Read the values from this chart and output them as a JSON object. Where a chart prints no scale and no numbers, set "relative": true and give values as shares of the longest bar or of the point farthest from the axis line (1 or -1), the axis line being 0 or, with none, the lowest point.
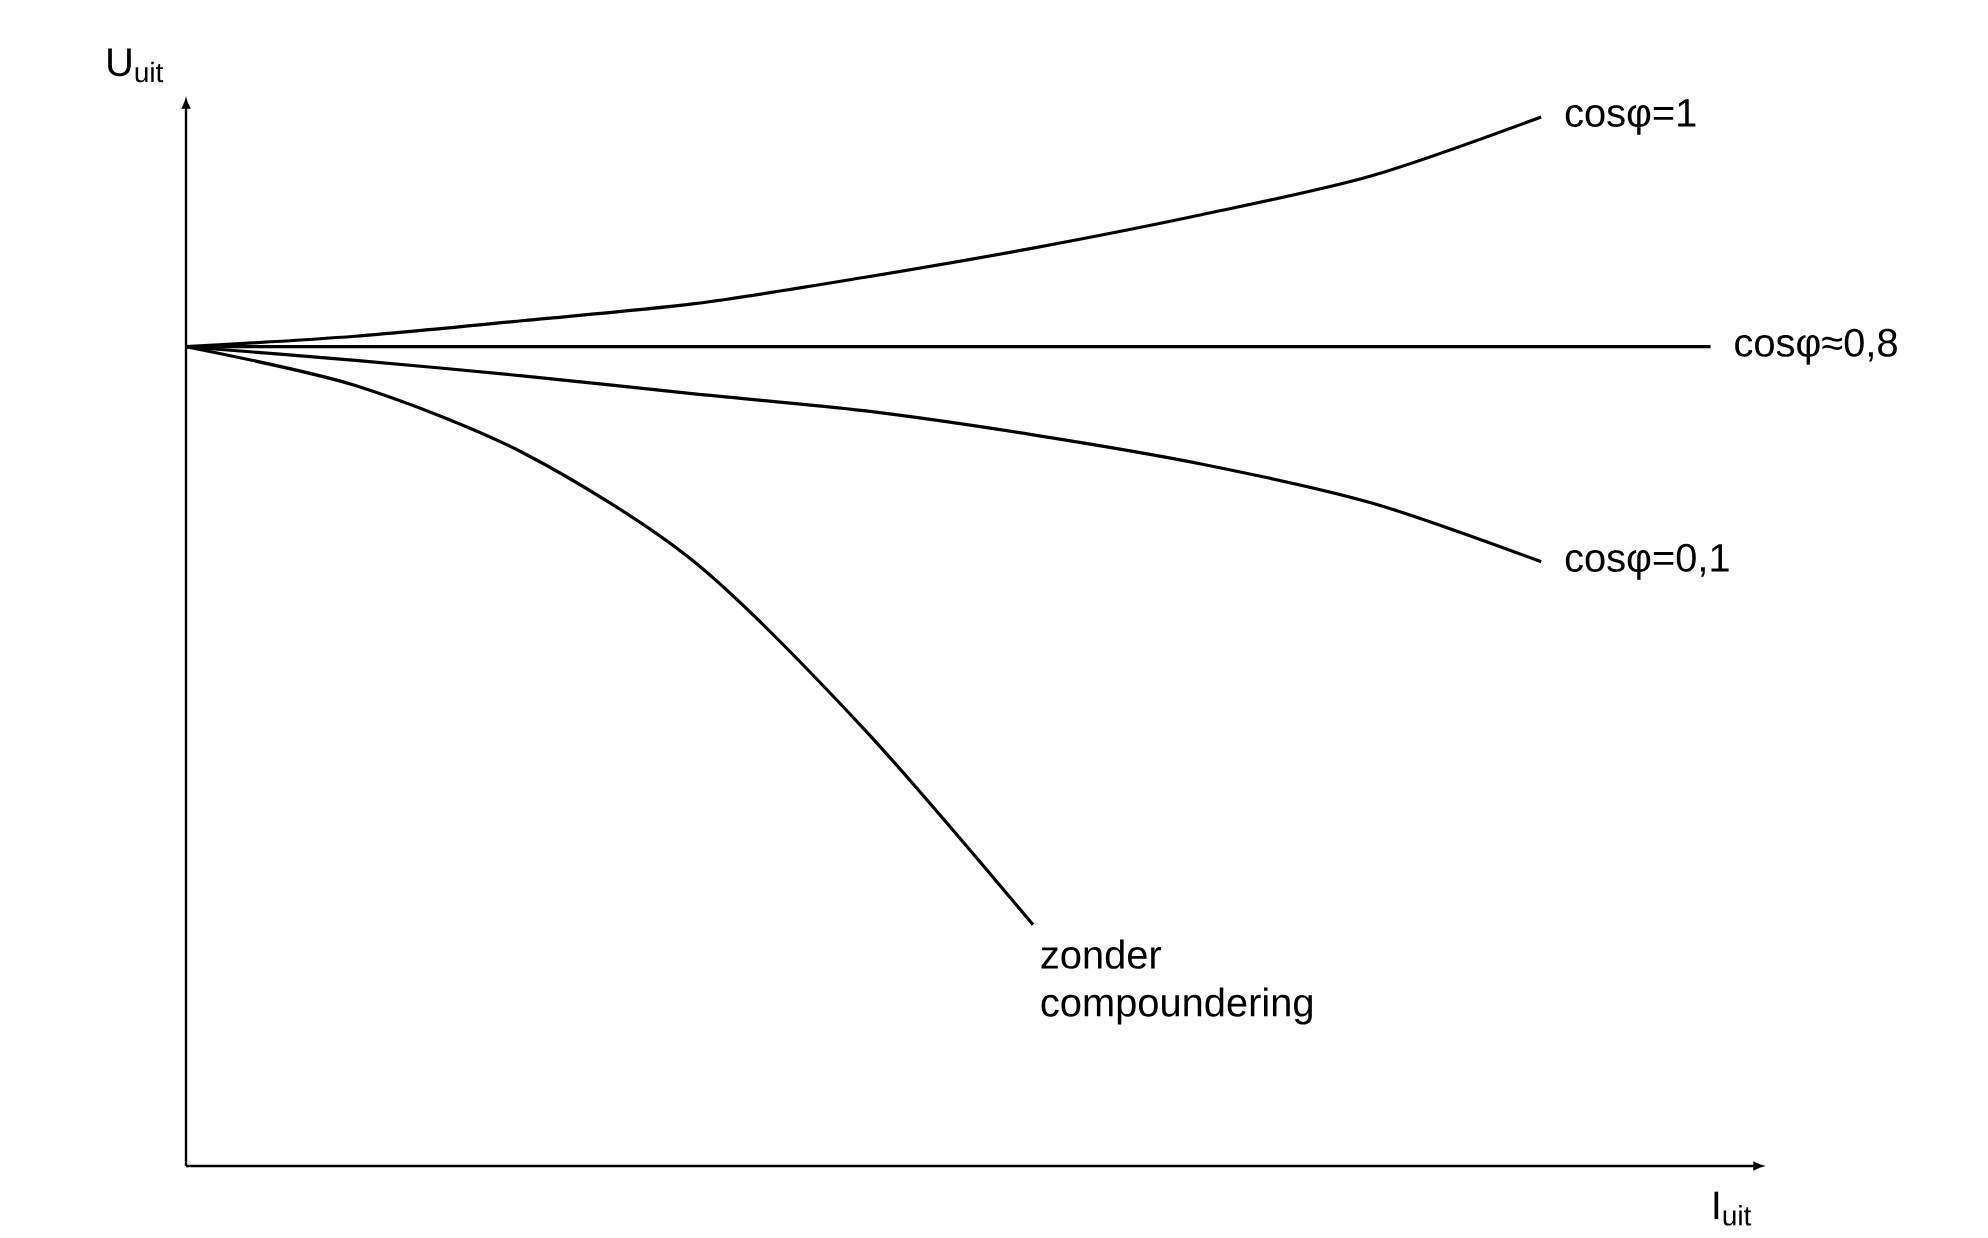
{
  "chart_data": {
    "type": "line",
    "relative": true,
    "xlabel": "I$_{uit}$",
    "ylabel": "U$_{uit}$",
    "categories": [
      null,
      null,
      null,
      null,
      null,
      null,
      null,
      null,
      null,
      null
    ],
    "series": [
      {
        "name": "cosφ=1",
        "color": "#000000",
        "values": [
          0.781,
          0.791,
          0.806,
          0.822,
          0.847,
          0.875,
          0.907,
          0.944,
          1.0,
          null
        ]
      },
      {
        "name": "cosφ≈0,8",
        "color": "#000000",
        "values": [
          0.781,
          0.781,
          0.781,
          0.781,
          0.781,
          0.781,
          0.781,
          0.781,
          0.781,
          0.781
        ]
      },
      {
        "name": "cosφ=0,1",
        "color": "#000000",
        "values": [
          0.781,
          0.768,
          0.753,
          0.736,
          0.72,
          0.697,
          0.669,
          0.632,
          0.576,
          null
        ]
      },
      {
        "name": "zonder compoundering",
        "color": "#000000",
        "values": [
          0.781,
          0.744,
          0.679,
          0.576,
          0.417,
          0.23,
          null,
          null,
          null,
          null
        ]
      }
    ],
    "tick_labels": false,
    "marker": "none",
    "line_style": "solid"
  }
}
